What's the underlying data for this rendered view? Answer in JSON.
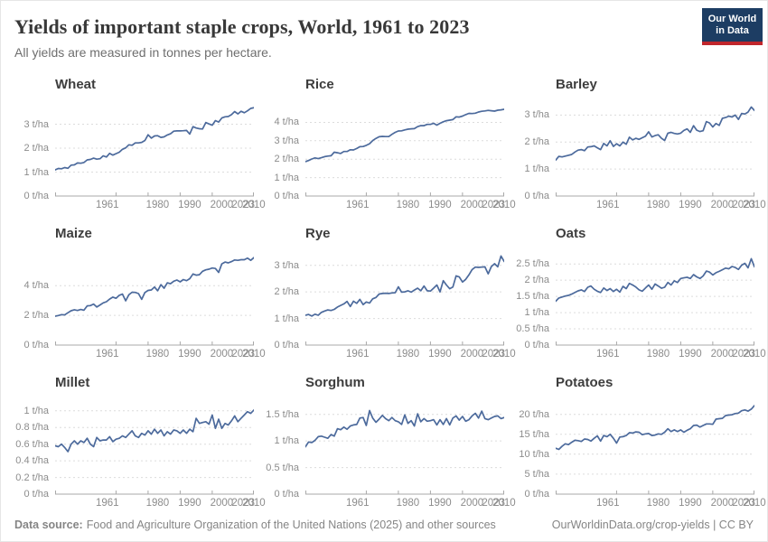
{
  "header": {
    "title": "Yields of important staple crops, World, 1961 to 2023",
    "subtitle": "All yields are measured in tonnes per hectare.",
    "logo_line1": "Our World",
    "logo_line2": "in Data"
  },
  "footer": {
    "source_label": "Data source:",
    "source_text": "Food and Agriculture Organization of the United Nations (2025) and other sources",
    "credit": "OurWorldinData.org/crop-yields | CC BY"
  },
  "colors": {
    "line": "#4c6a9c",
    "grid": "#dcdcdc",
    "axis": "#a8a8a8",
    "tick_label": "#8c8c8c",
    "logo_bg": "#1d3d63",
    "logo_accent": "#c0262c"
  },
  "chart_data": [
    {
      "type": "line",
      "title": "Wheat",
      "unit": "t/ha",
      "years": {
        "start": 1961,
        "end": 2023,
        "step": 1
      },
      "xticks": [
        1961,
        1980,
        1990,
        2000,
        2010,
        2023
      ],
      "yticks": [
        {
          "v": 0,
          "label": "0 t/ha"
        },
        {
          "v": 1,
          "label": "1 t/ha"
        },
        {
          "v": 2,
          "label": "2 t/ha"
        },
        {
          "v": 3,
          "label": "3 t/ha"
        }
      ],
      "ylim": [
        0,
        4.0
      ],
      "grid": true,
      "values": [
        1.09,
        1.15,
        1.14,
        1.19,
        1.16,
        1.29,
        1.3,
        1.38,
        1.37,
        1.4,
        1.51,
        1.53,
        1.58,
        1.54,
        1.56,
        1.68,
        1.63,
        1.78,
        1.71,
        1.77,
        1.83,
        1.95,
        2.01,
        2.14,
        2.12,
        2.22,
        2.22,
        2.24,
        2.32,
        2.56,
        2.42,
        2.51,
        2.52,
        2.45,
        2.47,
        2.55,
        2.6,
        2.71,
        2.72,
        2.72,
        2.73,
        2.74,
        2.59,
        2.9,
        2.84,
        2.81,
        2.8,
        3.07,
        3.01,
        2.96,
        3.15,
        3.09,
        3.26,
        3.31,
        3.32,
        3.4,
        3.53,
        3.43,
        3.54,
        3.48,
        3.56,
        3.66,
        3.69
      ]
    },
    {
      "type": "line",
      "title": "Rice",
      "unit": "t/ha",
      "years": {
        "start": 1961,
        "end": 2023,
        "step": 1
      },
      "xticks": [
        1961,
        1980,
        1990,
        2000,
        2010,
        2023
      ],
      "yticks": [
        {
          "v": 0,
          "label": "0 t/ha"
        },
        {
          "v": 1,
          "label": "1 t/ha"
        },
        {
          "v": 2,
          "label": "2 t/ha"
        },
        {
          "v": 3,
          "label": "3 t/ha"
        },
        {
          "v": 4,
          "label": "4 t/ha"
        }
      ],
      "ylim": [
        0,
        5.2
      ],
      "grid": true,
      "values": [
        1.87,
        1.93,
        2.01,
        2.07,
        2.03,
        2.08,
        2.14,
        2.17,
        2.19,
        2.38,
        2.35,
        2.31,
        2.42,
        2.42,
        2.51,
        2.5,
        2.58,
        2.68,
        2.69,
        2.75,
        2.84,
        3.01,
        3.13,
        3.22,
        3.24,
        3.23,
        3.23,
        3.35,
        3.46,
        3.53,
        3.54,
        3.59,
        3.63,
        3.65,
        3.66,
        3.77,
        3.82,
        3.82,
        3.89,
        3.89,
        3.95,
        3.85,
        3.95,
        4.03,
        4.09,
        4.12,
        4.15,
        4.3,
        4.29,
        4.34,
        4.42,
        4.49,
        4.48,
        4.5,
        4.56,
        4.6,
        4.62,
        4.65,
        4.63,
        4.61,
        4.66,
        4.68,
        4.71
      ]
    },
    {
      "type": "line",
      "title": "Barley",
      "unit": "t/ha",
      "years": {
        "start": 1961,
        "end": 2023,
        "step": 1
      },
      "xticks": [
        1961,
        1980,
        1990,
        2000,
        2010,
        2023
      ],
      "yticks": [
        {
          "v": 0,
          "label": "0 t/ha"
        },
        {
          "v": 1,
          "label": "1 t/ha"
        },
        {
          "v": 2,
          "label": "2 t/ha"
        },
        {
          "v": 3,
          "label": "3 t/ha"
        }
      ],
      "ylim": [
        0,
        3.55
      ],
      "grid": true,
      "values": [
        1.33,
        1.47,
        1.45,
        1.48,
        1.51,
        1.54,
        1.63,
        1.7,
        1.72,
        1.68,
        1.82,
        1.83,
        1.86,
        1.79,
        1.72,
        1.95,
        1.86,
        2.05,
        1.84,
        1.94,
        1.86,
        2.0,
        1.92,
        2.18,
        2.08,
        2.14,
        2.1,
        2.16,
        2.22,
        2.38,
        2.19,
        2.24,
        2.27,
        2.14,
        2.06,
        2.33,
        2.36,
        2.32,
        2.3,
        2.33,
        2.43,
        2.49,
        2.36,
        2.61,
        2.44,
        2.39,
        2.42,
        2.76,
        2.71,
        2.56,
        2.69,
        2.62,
        2.88,
        2.91,
        2.96,
        2.93,
        3.0,
        2.84,
        3.06,
        3.04,
        3.11,
        3.3,
        3.17
      ]
    },
    {
      "type": "line",
      "title": "Maize",
      "unit": "t/ha",
      "years": {
        "start": 1961,
        "end": 2023,
        "step": 1
      },
      "xticks": [
        1961,
        1980,
        1990,
        2000,
        2010,
        2023
      ],
      "yticks": [
        {
          "v": 0,
          "label": "0 t/ha"
        },
        {
          "v": 2,
          "label": "2 t/ha"
        },
        {
          "v": 4,
          "label": "4 t/ha"
        }
      ],
      "ylim": [
        0,
        6.45
      ],
      "grid": true,
      "values": [
        1.94,
        1.99,
        2.05,
        2.03,
        2.18,
        2.31,
        2.38,
        2.33,
        2.4,
        2.35,
        2.64,
        2.66,
        2.76,
        2.56,
        2.7,
        2.84,
        2.92,
        3.1,
        3.23,
        3.15,
        3.35,
        3.44,
        2.98,
        3.39,
        3.56,
        3.55,
        3.47,
        3.08,
        3.54,
        3.68,
        3.71,
        3.91,
        3.66,
        4.07,
        3.83,
        4.19,
        4.13,
        4.3,
        4.38,
        4.26,
        4.41,
        4.34,
        4.47,
        4.79,
        4.71,
        4.74,
        4.97,
        5.07,
        5.11,
        5.19,
        5.16,
        4.89,
        5.47,
        5.59,
        5.54,
        5.62,
        5.73,
        5.71,
        5.75,
        5.75,
        5.86,
        5.71,
        5.89
      ]
    },
    {
      "type": "line",
      "title": "Rye",
      "unit": "t/ha",
      "years": {
        "start": 1961,
        "end": 2023,
        "step": 1
      },
      "xticks": [
        1961,
        1980,
        1990,
        2000,
        2010,
        2023
      ],
      "yticks": [
        {
          "v": 0,
          "label": "0 t/ha"
        },
        {
          "v": 1,
          "label": "1 t/ha"
        },
        {
          "v": 2,
          "label": "2 t/ha"
        },
        {
          "v": 3,
          "label": "3 t/ha"
        }
      ],
      "ylim": [
        0,
        3.6
      ],
      "grid": true,
      "values": [
        1.12,
        1.15,
        1.09,
        1.16,
        1.12,
        1.23,
        1.28,
        1.32,
        1.3,
        1.34,
        1.43,
        1.49,
        1.55,
        1.64,
        1.45,
        1.65,
        1.57,
        1.72,
        1.52,
        1.62,
        1.58,
        1.74,
        1.79,
        1.92,
        1.94,
        1.95,
        1.94,
        1.96,
        1.97,
        2.19,
        1.99,
        2.0,
        2.04,
        1.99,
        2.07,
        2.14,
        2.04,
        2.22,
        2.04,
        2.03,
        2.14,
        2.26,
        2.0,
        2.42,
        2.26,
        2.12,
        2.18,
        2.6,
        2.56,
        2.37,
        2.47,
        2.64,
        2.84,
        2.93,
        2.92,
        2.93,
        2.94,
        2.68,
        2.95,
        3.06,
        2.94,
        3.35,
        3.14
      ]
    },
    {
      "type": "line",
      "title": "Oats",
      "unit": "t/ha",
      "years": {
        "start": 1961,
        "end": 2023,
        "step": 1
      },
      "xticks": [
        1961,
        1980,
        1990,
        2000,
        2010,
        2023
      ],
      "yticks": [
        {
          "v": 0,
          "label": "0 t/ha"
        },
        {
          "v": 0.5,
          "label": "0.5 t/ha"
        },
        {
          "v": 1,
          "label": "1 t/ha"
        },
        {
          "v": 1.5,
          "label": "1.5 t/ha"
        },
        {
          "v": 2,
          "label": "2 t/ha"
        },
        {
          "v": 2.5,
          "label": "2.5 t/ha"
        }
      ],
      "ylim": [
        0,
        2.95
      ],
      "grid": true,
      "values": [
        1.35,
        1.45,
        1.48,
        1.51,
        1.53,
        1.57,
        1.62,
        1.67,
        1.7,
        1.65,
        1.78,
        1.82,
        1.72,
        1.66,
        1.62,
        1.76,
        1.68,
        1.74,
        1.65,
        1.72,
        1.63,
        1.81,
        1.74,
        1.9,
        1.85,
        1.79,
        1.7,
        1.66,
        1.76,
        1.85,
        1.72,
        1.88,
        1.82,
        1.75,
        1.78,
        1.93,
        1.85,
        1.98,
        1.93,
        2.05,
        2.07,
        2.09,
        2.05,
        2.17,
        2.1,
        2.05,
        2.13,
        2.28,
        2.25,
        2.16,
        2.23,
        2.27,
        2.32,
        2.37,
        2.35,
        2.42,
        2.39,
        2.33,
        2.46,
        2.52,
        2.38,
        2.66,
        2.41
      ]
    },
    {
      "type": "line",
      "title": "Millet",
      "unit": "t/ha",
      "years": {
        "start": 1961,
        "end": 2023,
        "step": 1
      },
      "xticks": [
        1961,
        1980,
        1990,
        2000,
        2010,
        2023
      ],
      "yticks": [
        {
          "v": 0,
          "label": "0 t/ha"
        },
        {
          "v": 0.2,
          "label": "0.2 t/ha"
        },
        {
          "v": 0.4,
          "label": "0.4 t/ha"
        },
        {
          "v": 0.6,
          "label": "0.6 t/ha"
        },
        {
          "v": 0.8,
          "label": "0.8 t/ha"
        },
        {
          "v": 1,
          "label": "1 t/ha"
        }
      ],
      "ylim": [
        0,
        1.15
      ],
      "grid": true,
      "values": [
        0.58,
        0.57,
        0.6,
        0.56,
        0.51,
        0.6,
        0.64,
        0.6,
        0.64,
        0.62,
        0.67,
        0.6,
        0.57,
        0.68,
        0.64,
        0.65,
        0.65,
        0.69,
        0.63,
        0.66,
        0.67,
        0.7,
        0.68,
        0.72,
        0.76,
        0.7,
        0.68,
        0.73,
        0.71,
        0.76,
        0.72,
        0.78,
        0.73,
        0.77,
        0.7,
        0.75,
        0.72,
        0.77,
        0.76,
        0.73,
        0.77,
        0.73,
        0.78,
        0.75,
        0.91,
        0.85,
        0.86,
        0.87,
        0.84,
        0.95,
        0.79,
        0.9,
        0.79,
        0.85,
        0.83,
        0.88,
        0.94,
        0.87,
        0.91,
        0.95,
        0.99,
        0.97,
        1.01
      ]
    },
    {
      "type": "line",
      "title": "Sorghum",
      "unit": "t/ha",
      "years": {
        "start": 1961,
        "end": 2023,
        "step": 1
      },
      "xticks": [
        1961,
        1980,
        1990,
        2000,
        2010,
        2023
      ],
      "yticks": [
        {
          "v": 0,
          "label": "0 t/ha"
        },
        {
          "v": 0.5,
          "label": "0.5 t/ha"
        },
        {
          "v": 1,
          "label": "1 t/ha"
        },
        {
          "v": 1.5,
          "label": "1.5 t/ha"
        }
      ],
      "ylim": [
        0,
        1.8
      ],
      "grid": true,
      "values": [
        0.89,
        0.98,
        0.97,
        1.01,
        1.08,
        1.09,
        1.07,
        1.05,
        1.12,
        1.09,
        1.23,
        1.21,
        1.26,
        1.22,
        1.28,
        1.3,
        1.31,
        1.43,
        1.44,
        1.29,
        1.57,
        1.43,
        1.35,
        1.41,
        1.48,
        1.42,
        1.38,
        1.44,
        1.38,
        1.36,
        1.31,
        1.49,
        1.33,
        1.38,
        1.28,
        1.51,
        1.36,
        1.42,
        1.37,
        1.38,
        1.4,
        1.3,
        1.4,
        1.31,
        1.42,
        1.3,
        1.43,
        1.47,
        1.39,
        1.46,
        1.37,
        1.4,
        1.47,
        1.52,
        1.43,
        1.56,
        1.42,
        1.4,
        1.43,
        1.46,
        1.47,
        1.42,
        1.44
      ]
    },
    {
      "type": "line",
      "title": "Potatoes",
      "unit": "t/ha",
      "years": {
        "start": 1961,
        "end": 2023,
        "step": 1
      },
      "xticks": [
        1961,
        1980,
        1990,
        2000,
        2010,
        2023
      ],
      "yticks": [
        {
          "v": 0,
          "label": "0 t/ha"
        },
        {
          "v": 5,
          "label": "5 t/ha"
        },
        {
          "v": 10,
          "label": "10 t/ha"
        },
        {
          "v": 15,
          "label": "15 t/ha"
        },
        {
          "v": 20,
          "label": "20 t/ha"
        }
      ],
      "ylim": [
        0,
        24.0
      ],
      "grid": true,
      "values": [
        11.5,
        11.2,
        12.0,
        12.6,
        12.4,
        13.0,
        13.5,
        13.4,
        13.2,
        13.8,
        13.7,
        13.3,
        14.0,
        14.6,
        13.3,
        14.7,
        14.4,
        15.0,
        14.0,
        12.8,
        14.3,
        14.4,
        14.7,
        15.4,
        15.3,
        15.6,
        15.5,
        14.9,
        15.1,
        15.2,
        14.7,
        14.8,
        15.1,
        15.0,
        15.5,
        16.4,
        15.7,
        16.1,
        15.7,
        16.1,
        15.5,
        16.0,
        16.4,
        17.2,
        17.3,
        16.8,
        17.2,
        17.6,
        17.6,
        17.5,
        18.8,
        18.9,
        19.0,
        19.7,
        19.8,
        19.9,
        20.2,
        20.3,
        20.9,
        21.1,
        20.8,
        21.3,
        22.2
      ]
    }
  ]
}
